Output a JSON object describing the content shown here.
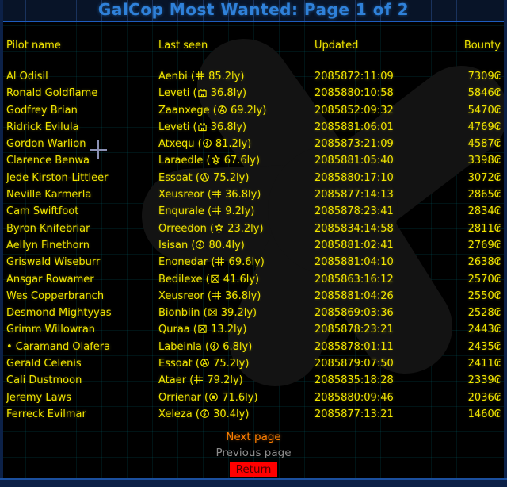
{
  "title": "GalCop Most Wanted: Page 1 of 2",
  "colors": {
    "title_blue": "#2f81d9",
    "text_yellow": "#f0e400",
    "next_orange": "#ff8000",
    "previous_gray": "#8c8c8c",
    "return_red_bg": "#ff0000",
    "frame_navy": "#0c2148"
  },
  "icons": {
    "corporate-icon": "double-bar hash government glyph",
    "castle-icon": "castle tower with battlements and door",
    "anarchy-icon": "circled letter A",
    "lightning-icon": "circle with lightning bolt",
    "star-icon": "five pointed star on base",
    "boxed-x-icon": "square with X inside",
    "fist-icon": "circle with raised fist"
  },
  "table": {
    "headers": [
      "Pilot name",
      "Last seen",
      "Updated",
      "Bounty"
    ],
    "rows": [
      {
        "pilot": "Al Odisil",
        "system": "Aenbi",
        "gov_icon": "corporate-icon",
        "distance": "85.2ly",
        "updated": "2085872:11:09",
        "bounty": "7309₢"
      },
      {
        "pilot": "Ronald Goldflame",
        "system": "Leveti",
        "gov_icon": "castle-icon",
        "distance": "36.8ly",
        "updated": "2085880:10:58",
        "bounty": "5846₢"
      },
      {
        "pilot": "Godfrey Brian",
        "system": "Zaanxege",
        "gov_icon": "anarchy-icon",
        "distance": "69.2ly",
        "updated": "2085852:09:32",
        "bounty": "5470₢"
      },
      {
        "pilot": "Ridrick Evilula",
        "system": "Leveti",
        "gov_icon": "castle-icon",
        "distance": "36.8ly",
        "updated": "2085881:06:01",
        "bounty": "4769₢"
      },
      {
        "pilot": "Gordon Warlion",
        "system": "Atxequ",
        "gov_icon": "lightning-icon",
        "distance": "81.2ly",
        "updated": "2085873:21:09",
        "bounty": "4587₢"
      },
      {
        "pilot": "Clarence Benwa",
        "system": "Laraedle",
        "gov_icon": "star-icon",
        "distance": "67.6ly",
        "updated": "2085881:05:40",
        "bounty": "3398₢"
      },
      {
        "pilot": "Jede Kirston-Littleer",
        "system": "Essoat",
        "gov_icon": "anarchy-icon",
        "distance": "75.2ly",
        "updated": "2085880:17:10",
        "bounty": "3072₢"
      },
      {
        "pilot": "Neville Karmerla",
        "system": "Xeusreor",
        "gov_icon": "corporate-icon",
        "distance": "36.8ly",
        "updated": "2085877:14:13",
        "bounty": "2865₢"
      },
      {
        "pilot": "Cam Swiftfoot",
        "system": "Enqurale",
        "gov_icon": "corporate-icon",
        "distance": "9.2ly",
        "updated": "2085878:23:41",
        "bounty": "2834₢"
      },
      {
        "pilot": "Byron Knifebriar",
        "system": "Orreedon",
        "gov_icon": "star-icon",
        "distance": "23.2ly",
        "updated": "2085834:14:58",
        "bounty": "2811₢"
      },
      {
        "pilot": "Aellyn Finethorn",
        "system": "Isisan",
        "gov_icon": "lightning-icon",
        "distance": "80.4ly",
        "updated": "2085881:02:41",
        "bounty": "2769₢"
      },
      {
        "pilot": "Griswald Wiseburr",
        "system": "Enonedar",
        "gov_icon": "corporate-icon",
        "distance": "69.6ly",
        "updated": "2085881:04:10",
        "bounty": "2638₢"
      },
      {
        "pilot": "Ansgar Rowamer",
        "system": "Bedilexe",
        "gov_icon": "boxed-x-icon",
        "distance": "41.6ly",
        "updated": "2085863:16:12",
        "bounty": "2570₢"
      },
      {
        "pilot": "Wes Copperbranch",
        "system": "Xeusreor",
        "gov_icon": "corporate-icon",
        "distance": "36.8ly",
        "updated": "2085881:04:26",
        "bounty": "2550₢"
      },
      {
        "pilot": "Desmond Mightyyas",
        "system": "Bionbiin",
        "gov_icon": "boxed-x-icon",
        "distance": "39.2ly",
        "updated": "2085869:03:36",
        "bounty": "2528₢"
      },
      {
        "pilot": "Grimm Willowran",
        "system": "Quraa",
        "gov_icon": "boxed-x-icon",
        "distance": "13.2ly",
        "updated": "2085878:23:21",
        "bounty": "2443₢"
      },
      {
        "pilot": "• Caramand Olafera",
        "system": "Labeinla",
        "gov_icon": "lightning-icon",
        "distance": "6.8ly",
        "updated": "2085878:01:11",
        "bounty": "2435₢"
      },
      {
        "pilot": "Gerald Celenis",
        "system": "Essoat",
        "gov_icon": "anarchy-icon",
        "distance": "75.2ly",
        "updated": "2085879:07:50",
        "bounty": "2411₢"
      },
      {
        "pilot": "Cali Dustmoon",
        "system": "Ataer",
        "gov_icon": "corporate-icon",
        "distance": "79.2ly",
        "updated": "2085835:18:28",
        "bounty": "2339₢"
      },
      {
        "pilot": "Jeremy Laws",
        "system": "Orrienar",
        "gov_icon": "fist-icon",
        "distance": "71.6ly",
        "updated": "2085880:09:46",
        "bounty": "2036₢"
      },
      {
        "pilot": "Ferreck Evilmar",
        "system": "Xeleza",
        "gov_icon": "lightning-icon",
        "distance": "30.4ly",
        "updated": "2085877:13:21",
        "bounty": "1460₢"
      }
    ]
  },
  "footer": {
    "next": "Next page",
    "previous": "Previous page",
    "return_label": "Return"
  }
}
